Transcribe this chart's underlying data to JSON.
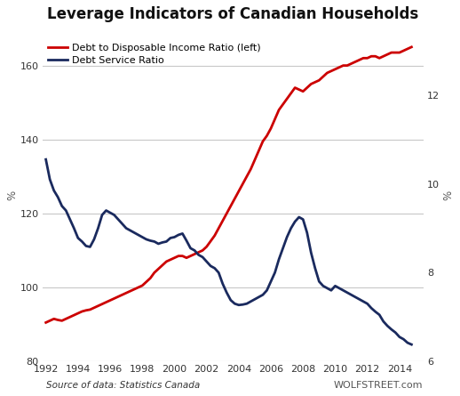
{
  "title": "Leverage Indicators of Canadian Households",
  "source_text": "Source of data: Statistics Canada",
  "watermark": "WOLFSTREET.com",
  "background_color": "#ffffff",
  "plot_bg_color": "#ffffff",
  "grid_color": "#c8c8c8",
  "left_ylabel": "%",
  "right_ylabel": "%",
  "ylim_left": [
    80,
    170
  ],
  "ylim_right": [
    6,
    13.5
  ],
  "yticks_left": [
    80,
    100,
    120,
    140,
    160
  ],
  "yticks_right": [
    6,
    8,
    10,
    12
  ],
  "xlim": [
    1991.8,
    2015.5
  ],
  "xticks": [
    1992,
    1994,
    1996,
    1998,
    2000,
    2002,
    2004,
    2006,
    2008,
    2010,
    2012,
    2014
  ],
  "red_label": "Debt to Disposable Income Ratio (left)",
  "blue_label": "Debt Service Ratio",
  "red_color": "#cc0000",
  "blue_color": "#1a2a5e",
  "red_linewidth": 2.0,
  "blue_linewidth": 2.0,
  "debt_income": {
    "years": [
      1992.0,
      1992.25,
      1992.5,
      1992.75,
      1993.0,
      1993.25,
      1993.5,
      1993.75,
      1994.0,
      1994.25,
      1994.5,
      1994.75,
      1995.0,
      1995.25,
      1995.5,
      1995.75,
      1996.0,
      1996.25,
      1996.5,
      1996.75,
      1997.0,
      1997.25,
      1997.5,
      1997.75,
      1998.0,
      1998.25,
      1998.5,
      1998.75,
      1999.0,
      1999.25,
      1999.5,
      1999.75,
      2000.0,
      2000.25,
      2000.5,
      2000.75,
      2001.0,
      2001.25,
      2001.5,
      2001.75,
      2002.0,
      2002.25,
      2002.5,
      2002.75,
      2003.0,
      2003.25,
      2003.5,
      2003.75,
      2004.0,
      2004.25,
      2004.5,
      2004.75,
      2005.0,
      2005.25,
      2005.5,
      2005.75,
      2006.0,
      2006.25,
      2006.5,
      2006.75,
      2007.0,
      2007.25,
      2007.5,
      2007.75,
      2008.0,
      2008.25,
      2008.5,
      2008.75,
      2009.0,
      2009.25,
      2009.5,
      2009.75,
      2010.0,
      2010.25,
      2010.5,
      2010.75,
      2011.0,
      2011.25,
      2011.5,
      2011.75,
      2012.0,
      2012.25,
      2012.5,
      2012.75,
      2013.0,
      2013.25,
      2013.5,
      2013.75,
      2014.0,
      2014.25,
      2014.5,
      2014.75
    ],
    "values": [
      90.5,
      91.0,
      91.5,
      91.2,
      91.0,
      91.5,
      92.0,
      92.5,
      93.0,
      93.5,
      93.8,
      94.0,
      94.5,
      95.0,
      95.5,
      96.0,
      96.5,
      97.0,
      97.5,
      98.0,
      98.5,
      99.0,
      99.5,
      100.0,
      100.5,
      101.5,
      102.5,
      104.0,
      105.0,
      106.0,
      107.0,
      107.5,
      108.0,
      108.5,
      108.5,
      108.0,
      108.5,
      109.0,
      109.5,
      110.0,
      111.0,
      112.5,
      114.0,
      116.0,
      118.0,
      120.0,
      122.0,
      124.0,
      126.0,
      128.0,
      130.0,
      132.0,
      134.5,
      137.0,
      139.5,
      141.0,
      143.0,
      145.5,
      148.0,
      149.5,
      151.0,
      152.5,
      154.0,
      153.5,
      153.0,
      154.0,
      155.0,
      155.5,
      156.0,
      157.0,
      158.0,
      158.5,
      159.0,
      159.5,
      160.0,
      160.0,
      160.5,
      161.0,
      161.5,
      162.0,
      162.0,
      162.5,
      162.5,
      162.0,
      162.5,
      163.0,
      163.5,
      163.5,
      163.5,
      164.0,
      164.5,
      165.0
    ]
  },
  "debt_service": {
    "years": [
      1992.0,
      1992.25,
      1992.5,
      1992.75,
      1993.0,
      1993.25,
      1993.5,
      1993.75,
      1994.0,
      1994.25,
      1994.5,
      1994.75,
      1995.0,
      1995.25,
      1995.5,
      1995.75,
      1996.0,
      1996.25,
      1996.5,
      1996.75,
      1997.0,
      1997.25,
      1997.5,
      1997.75,
      1998.0,
      1998.25,
      1998.5,
      1998.75,
      1999.0,
      1999.25,
      1999.5,
      1999.75,
      2000.0,
      2000.25,
      2000.5,
      2000.75,
      2001.0,
      2001.25,
      2001.5,
      2001.75,
      2002.0,
      2002.25,
      2002.5,
      2002.75,
      2003.0,
      2003.25,
      2003.5,
      2003.75,
      2004.0,
      2004.25,
      2004.5,
      2004.75,
      2005.0,
      2005.25,
      2005.5,
      2005.75,
      2006.0,
      2006.25,
      2006.5,
      2006.75,
      2007.0,
      2007.25,
      2007.5,
      2007.75,
      2008.0,
      2008.25,
      2008.5,
      2008.75,
      2009.0,
      2009.25,
      2009.5,
      2009.75,
      2010.0,
      2010.25,
      2010.5,
      2010.75,
      2011.0,
      2011.25,
      2011.5,
      2011.75,
      2012.0,
      2012.25,
      2012.5,
      2012.75,
      2013.0,
      2013.25,
      2013.5,
      2013.75,
      2014.0,
      2014.25,
      2014.5,
      2014.75
    ],
    "values": [
      10.55,
      10.1,
      9.85,
      9.7,
      9.5,
      9.4,
      9.2,
      9.0,
      8.78,
      8.7,
      8.6,
      8.58,
      8.75,
      9.0,
      9.3,
      9.4,
      9.35,
      9.3,
      9.2,
      9.1,
      9.0,
      8.95,
      8.9,
      8.85,
      8.8,
      8.75,
      8.72,
      8.7,
      8.65,
      8.68,
      8.7,
      8.78,
      8.8,
      8.85,
      8.88,
      8.72,
      8.55,
      8.5,
      8.4,
      8.35,
      8.25,
      8.15,
      8.1,
      8.0,
      7.75,
      7.55,
      7.38,
      7.3,
      7.27,
      7.28,
      7.3,
      7.35,
      7.4,
      7.45,
      7.5,
      7.6,
      7.8,
      8.0,
      8.3,
      8.55,
      8.8,
      9.0,
      9.15,
      9.25,
      9.2,
      8.9,
      8.45,
      8.1,
      7.8,
      7.7,
      7.65,
      7.6,
      7.7,
      7.65,
      7.6,
      7.55,
      7.5,
      7.45,
      7.4,
      7.35,
      7.3,
      7.2,
      7.12,
      7.05,
      6.9,
      6.8,
      6.72,
      6.65,
      6.55,
      6.5,
      6.42,
      6.38
    ]
  }
}
